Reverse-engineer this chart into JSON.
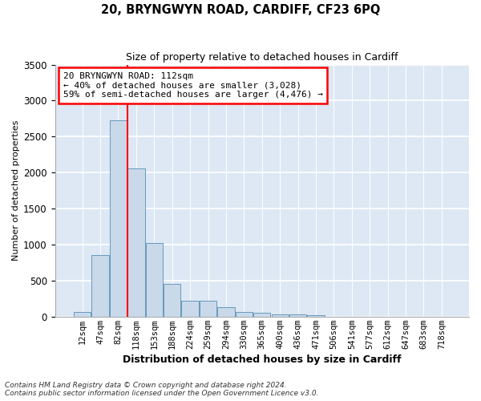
{
  "title_line1": "20, BRYNGWYN ROAD, CARDIFF, CF23 6PQ",
  "title_line2": "Size of property relative to detached houses in Cardiff",
  "xlabel": "Distribution of detached houses by size in Cardiff",
  "ylabel": "Number of detached properties",
  "bar_color": "#c9d9ea",
  "bar_edge_color": "#6699bb",
  "background_color": "#dde8f4",
  "grid_color": "#ffffff",
  "categories": [
    "12sqm",
    "47sqm",
    "82sqm",
    "118sqm",
    "153sqm",
    "188sqm",
    "224sqm",
    "259sqm",
    "294sqm",
    "330sqm",
    "365sqm",
    "400sqm",
    "436sqm",
    "471sqm",
    "506sqm",
    "541sqm",
    "577sqm",
    "612sqm",
    "647sqm",
    "683sqm",
    "718sqm"
  ],
  "values": [
    60,
    850,
    2730,
    2060,
    1020,
    455,
    215,
    215,
    135,
    60,
    55,
    30,
    30,
    22,
    0,
    0,
    0,
    0,
    0,
    0,
    0
  ],
  "ylim": [
    0,
    3500
  ],
  "yticks": [
    0,
    500,
    1000,
    1500,
    2000,
    2500,
    3000,
    3500
  ],
  "red_line_x": 2.5,
  "annotation_text_line1": "20 BRYNGWYN ROAD: 112sqm",
  "annotation_text_line2": "← 40% of detached houses are smaller (3,028)",
  "annotation_text_line3": "59% of semi-detached houses are larger (4,476) →",
  "footnote_line1": "Contains HM Land Registry data © Crown copyright and database right 2024.",
  "footnote_line2": "Contains public sector information licensed under the Open Government Licence v3.0."
}
